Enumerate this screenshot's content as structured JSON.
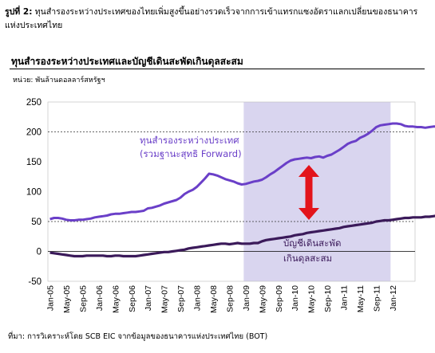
{
  "caption": {
    "lead": "รูปที่ 2:",
    "text": "ทุนสำรองระหว่างประเทศของไทยเพิ่มสูงขึ้นอย่างรวดเร็วจากการเข้าแทรกแซงอัตราแลกเปลี่ยนของธนาคารแห่งประเทศไทย"
  },
  "source": "ที่มา: การวิเคราะห์โดย SCB EIC จากข้อมูลของธนาคารแห่งประเทศไทย (BOT)",
  "colors": {
    "reserves": "#6a3fc8",
    "current_account": "#3b1a5a",
    "shade": "#d9d5ef",
    "arrow": "#e3141b"
  },
  "chart_data": {
    "type": "line",
    "title": "ทุนสำรองระหว่างประเทศและบัญชีเดินสะพัดเกินดุลสะสม",
    "subtitle": "หน่วย: พันล้านดอลลาร์สหรัฐฯ",
    "ylim": [
      -50,
      250
    ],
    "yticks": [
      -50,
      0,
      50,
      100,
      150,
      200,
      250
    ],
    "xticks": [
      "Jan-05",
      "May-05",
      "Sep-05",
      "Jan-06",
      "May-06",
      "Sep-06",
      "Jan-07",
      "May-07",
      "Sep-07",
      "Jan-08",
      "May-08",
      "Sep-08",
      "Jan-09",
      "May-09",
      "Sep-09",
      "Jan-10",
      "May-10",
      "Sep-10",
      "Jan-11",
      "May-11",
      "Sep-11",
      "Jan-12"
    ],
    "x_last": "Mar-12",
    "reference_lines": [
      200,
      50
    ],
    "shaded_period": [
      "Jan-09",
      "Dec-11"
    ],
    "annotations": {
      "reserves": [
        "ทุนสำรองระหว่างประเทศ",
        "(รวมฐานะสุทธิ Forward)"
      ],
      "current_account": [
        "บัญชีเดินสะพัด",
        "เกินดุลสะสม"
      ]
    },
    "series": [
      {
        "key": "reserves",
        "values": [
          [
            0,
            54
          ],
          [
            1,
            56
          ],
          [
            2,
            56
          ],
          [
            3,
            55
          ],
          [
            4,
            53
          ],
          [
            5,
            52
          ],
          [
            6,
            52
          ],
          [
            7,
            53
          ],
          [
            8,
            53
          ],
          [
            9,
            54
          ],
          [
            10,
            55
          ],
          [
            11,
            57
          ],
          [
            12,
            58
          ],
          [
            13,
            59
          ],
          [
            14,
            60
          ],
          [
            15,
            62
          ],
          [
            16,
            63
          ],
          [
            17,
            63
          ],
          [
            18,
            64
          ],
          [
            19,
            65
          ],
          [
            20,
            66
          ],
          [
            21,
            66
          ],
          [
            22,
            67
          ],
          [
            23,
            68
          ],
          [
            24,
            72
          ],
          [
            25,
            73
          ],
          [
            26,
            75
          ],
          [
            27,
            77
          ],
          [
            28,
            80
          ],
          [
            29,
            82
          ],
          [
            30,
            84
          ],
          [
            31,
            86
          ],
          [
            32,
            90
          ],
          [
            33,
            96
          ],
          [
            34,
            100
          ],
          [
            35,
            103
          ],
          [
            36,
            108
          ],
          [
            37,
            115
          ],
          [
            38,
            122
          ],
          [
            39,
            130
          ],
          [
            40,
            129
          ],
          [
            41,
            127
          ],
          [
            42,
            124
          ],
          [
            43,
            121
          ],
          [
            44,
            119
          ],
          [
            45,
            117
          ],
          [
            46,
            114
          ],
          [
            47,
            112
          ],
          [
            48,
            113
          ],
          [
            49,
            115
          ],
          [
            50,
            117
          ],
          [
            51,
            118
          ],
          [
            52,
            120
          ],
          [
            53,
            124
          ],
          [
            54,
            129
          ],
          [
            55,
            133
          ],
          [
            56,
            138
          ],
          [
            57,
            143
          ],
          [
            58,
            148
          ],
          [
            59,
            152
          ],
          [
            60,
            154
          ],
          [
            61,
            155
          ],
          [
            62,
            156
          ],
          [
            63,
            157
          ],
          [
            64,
            156
          ],
          [
            65,
            158
          ],
          [
            66,
            159
          ],
          [
            67,
            157
          ],
          [
            68,
            160
          ],
          [
            69,
            162
          ],
          [
            70,
            166
          ],
          [
            71,
            170
          ],
          [
            72,
            175
          ],
          [
            73,
            180
          ],
          [
            74,
            183
          ],
          [
            75,
            185
          ],
          [
            76,
            190
          ],
          [
            77,
            193
          ],
          [
            78,
            197
          ],
          [
            79,
            202
          ],
          [
            80,
            208
          ],
          [
            81,
            211
          ],
          [
            82,
            212
          ],
          [
            83,
            213
          ],
          [
            84,
            214
          ],
          [
            85,
            214
          ],
          [
            86,
            213
          ],
          [
            87,
            210
          ],
          [
            88,
            209
          ],
          [
            89,
            209
          ],
          [
            90,
            208
          ],
          [
            91,
            208
          ],
          [
            92,
            207
          ],
          [
            93,
            208
          ],
          [
            94,
            209
          ],
          [
            95,
            209
          ],
          [
            96,
            209
          ],
          [
            97,
            208
          ]
        ]
      },
      {
        "key": "current_account",
        "values": [
          [
            0,
            -2
          ],
          [
            1,
            -3
          ],
          [
            2,
            -4
          ],
          [
            3,
            -5
          ],
          [
            4,
            -6
          ],
          [
            5,
            -7
          ],
          [
            6,
            -8
          ],
          [
            7,
            -8
          ],
          [
            8,
            -8
          ],
          [
            9,
            -7
          ],
          [
            10,
            -7
          ],
          [
            11,
            -7
          ],
          [
            12,
            -7
          ],
          [
            13,
            -7
          ],
          [
            14,
            -8
          ],
          [
            15,
            -8
          ],
          [
            16,
            -7
          ],
          [
            17,
            -7
          ],
          [
            18,
            -8
          ],
          [
            19,
            -8
          ],
          [
            20,
            -8
          ],
          [
            21,
            -8
          ],
          [
            22,
            -7
          ],
          [
            23,
            -6
          ],
          [
            24,
            -5
          ],
          [
            25,
            -4
          ],
          [
            26,
            -3
          ],
          [
            27,
            -2
          ],
          [
            28,
            -1
          ],
          [
            29,
            -1
          ],
          [
            30,
            0
          ],
          [
            31,
            1
          ],
          [
            32,
            2
          ],
          [
            33,
            3
          ],
          [
            34,
            5
          ],
          [
            35,
            6
          ],
          [
            36,
            7
          ],
          [
            37,
            8
          ],
          [
            38,
            9
          ],
          [
            39,
            10
          ],
          [
            40,
            11
          ],
          [
            41,
            12
          ],
          [
            42,
            13
          ],
          [
            43,
            13
          ],
          [
            44,
            12
          ],
          [
            45,
            13
          ],
          [
            46,
            14
          ],
          [
            47,
            13
          ],
          [
            48,
            13
          ],
          [
            49,
            13
          ],
          [
            50,
            14
          ],
          [
            51,
            14
          ],
          [
            52,
            17
          ],
          [
            53,
            19
          ],
          [
            54,
            20
          ],
          [
            55,
            21
          ],
          [
            56,
            22
          ],
          [
            57,
            23
          ],
          [
            58,
            24
          ],
          [
            59,
            25
          ],
          [
            60,
            27
          ],
          [
            61,
            28
          ],
          [
            62,
            29
          ],
          [
            63,
            31
          ],
          [
            64,
            32
          ],
          [
            65,
            33
          ],
          [
            66,
            34
          ],
          [
            67,
            35
          ],
          [
            68,
            36
          ],
          [
            69,
            37
          ],
          [
            70,
            38
          ],
          [
            71,
            39
          ],
          [
            72,
            41
          ],
          [
            73,
            42
          ],
          [
            74,
            43
          ],
          [
            75,
            44
          ],
          [
            76,
            45
          ],
          [
            77,
            46
          ],
          [
            78,
            47
          ],
          [
            79,
            48
          ],
          [
            80,
            50
          ],
          [
            81,
            51
          ],
          [
            82,
            52
          ],
          [
            83,
            52
          ],
          [
            84,
            53
          ],
          [
            85,
            54
          ],
          [
            86,
            55
          ],
          [
            87,
            56
          ],
          [
            88,
            56
          ],
          [
            89,
            57
          ],
          [
            90,
            57
          ],
          [
            91,
            57
          ],
          [
            92,
            58
          ],
          [
            93,
            58
          ],
          [
            94,
            59
          ],
          [
            95,
            60
          ],
          [
            96,
            61
          ],
          [
            97,
            59
          ]
        ]
      }
    ]
  }
}
